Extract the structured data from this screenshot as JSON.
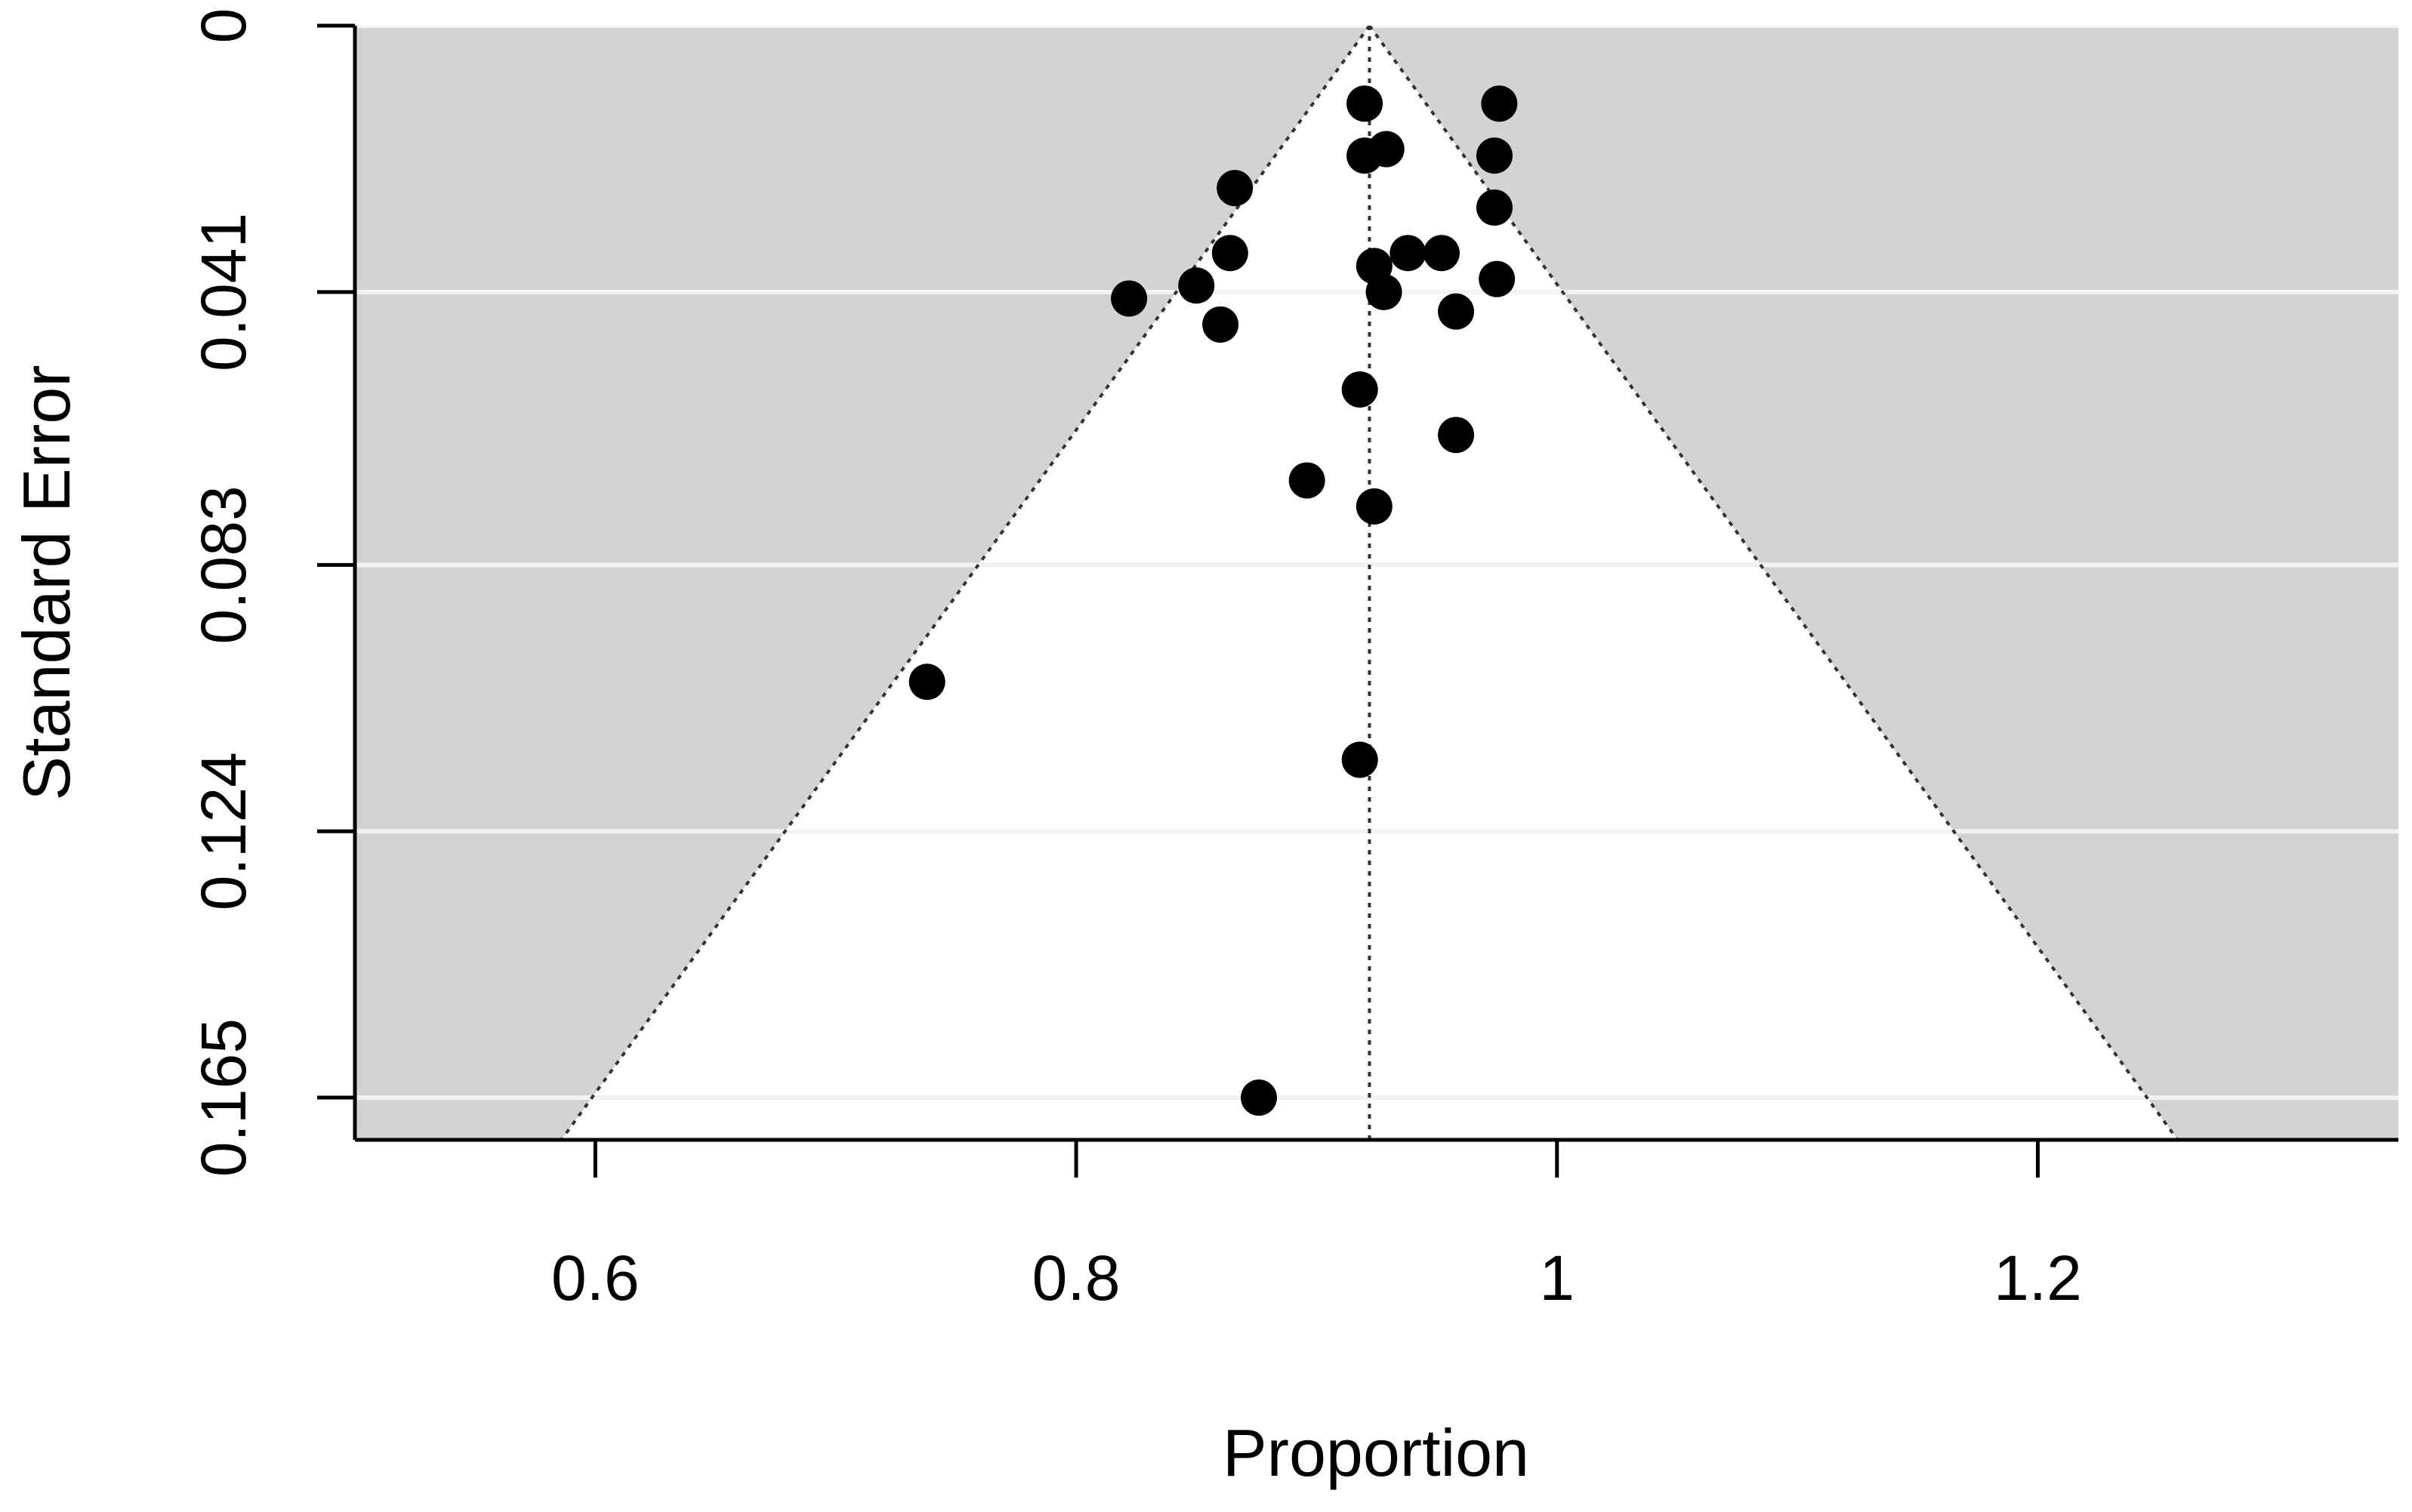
{
  "chart_data": {
    "type": "scatter",
    "subtype": "funnel",
    "title": "",
    "xlabel": "Proportion",
    "ylabel": "Standard Error",
    "xlim": [
      0.5,
      1.35
    ],
    "ylim": [
      0,
      0.1715
    ],
    "y_reversed": true,
    "x_ticks": [
      0.6,
      0.8,
      1.0,
      1.2
    ],
    "x_tick_labels": [
      "0.6",
      "0.8",
      "1",
      "1.2"
    ],
    "y_ticks": [
      0,
      0.041,
      0.083,
      0.124,
      0.165
    ],
    "y_tick_labels": [
      "0",
      "0.041",
      "0.083",
      "0.124",
      "0.165"
    ],
    "grid": "horizontal",
    "panel_background": "#d3d3d3",
    "funnel_fill": "#ffffff",
    "gridline_color": "#f2f2f2",
    "point_color": "#000000",
    "pooled_estimate": 0.922,
    "funnel_z": 1.96,
    "points": [
      {
        "x": 0.92,
        "y": 0.012
      },
      {
        "x": 0.976,
        "y": 0.012
      },
      {
        "x": 0.92,
        "y": 0.02
      },
      {
        "x": 0.929,
        "y": 0.019
      },
      {
        "x": 0.974,
        "y": 0.02
      },
      {
        "x": 0.866,
        "y": 0.025
      },
      {
        "x": 0.974,
        "y": 0.028
      },
      {
        "x": 0.864,
        "y": 0.035
      },
      {
        "x": 0.938,
        "y": 0.035
      },
      {
        "x": 0.952,
        "y": 0.035
      },
      {
        "x": 0.924,
        "y": 0.037
      },
      {
        "x": 0.975,
        "y": 0.039
      },
      {
        "x": 0.85,
        "y": 0.04
      },
      {
        "x": 0.928,
        "y": 0.041
      },
      {
        "x": 0.822,
        "y": 0.042
      },
      {
        "x": 0.958,
        "y": 0.044
      },
      {
        "x": 0.86,
        "y": 0.046
      },
      {
        "x": 0.918,
        "y": 0.056
      },
      {
        "x": 0.958,
        "y": 0.063
      },
      {
        "x": 0.896,
        "y": 0.07
      },
      {
        "x": 0.924,
        "y": 0.074
      },
      {
        "x": 0.738,
        "y": 0.101
      },
      {
        "x": 0.918,
        "y": 0.113
      },
      {
        "x": 0.876,
        "y": 0.165
      }
    ]
  }
}
